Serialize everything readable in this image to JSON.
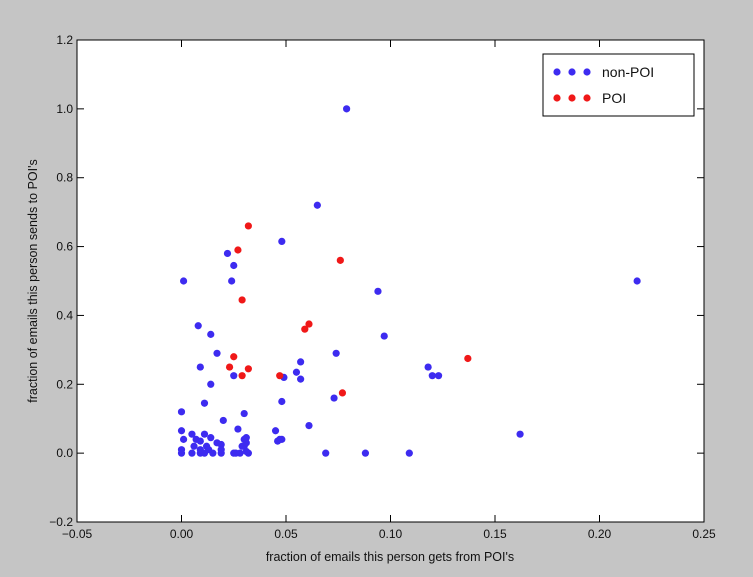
{
  "chart_data": {
    "type": "scatter",
    "title": "",
    "xlabel": "fraction of emails this person gets from POI's",
    "ylabel": "fraction of emails this person sends to POI's",
    "xlim": [
      -0.05,
      0.25
    ],
    "ylim": [
      -0.2,
      1.2
    ],
    "xticks": [
      -0.05,
      0.0,
      0.05,
      0.1,
      0.15,
      0.2,
      0.25
    ],
    "yticks": [
      -0.2,
      0.0,
      0.2,
      0.4,
      0.6,
      0.8,
      1.0,
      1.2
    ],
    "xtick_labels": [
      "−0.05",
      "0.00",
      "0.05",
      "0.10",
      "0.15",
      "0.20",
      "0.25"
    ],
    "ytick_labels": [
      "−0.2",
      "0.0",
      "0.2",
      "0.4",
      "0.6",
      "0.8",
      "1.0",
      "1.2"
    ],
    "grid": false,
    "legend_position": "top-right",
    "series": [
      {
        "name": "non-POI",
        "color": "#3d2bf0",
        "x": [
          0.079,
          0.218,
          0.065,
          0.048,
          0.001,
          0.022,
          0.025,
          0.024,
          0.094,
          0.008,
          0.014,
          0.097,
          0.009,
          0.017,
          0.057,
          0.074,
          0.055,
          0.057,
          0.118,
          0.12,
          0.123,
          0.014,
          0.025,
          0.049,
          0.073,
          0.011,
          0.03,
          0.048,
          0.0,
          0.02,
          0.061,
          0.045,
          0.027,
          0.162,
          0.0,
          0.005,
          0.011,
          0.001,
          0.007,
          0.009,
          0.014,
          0.017,
          0.019,
          0.03,
          0.031,
          0.046,
          0.048,
          0.0,
          0.005,
          0.009,
          0.011,
          0.015,
          0.019,
          0.025,
          0.028,
          0.032,
          0.006,
          0.029,
          0.012,
          0.069,
          0.088,
          0.109,
          0.0,
          0.009,
          0.013,
          0.026,
          0.03,
          0.031,
          0.047,
          0.019,
          0.031
        ],
        "y": [
          1.0,
          0.5,
          0.72,
          0.615,
          0.5,
          0.58,
          0.545,
          0.5,
          0.47,
          0.37,
          0.345,
          0.34,
          0.25,
          0.29,
          0.265,
          0.29,
          0.235,
          0.215,
          0.25,
          0.225,
          0.225,
          0.2,
          0.225,
          0.22,
          0.16,
          0.145,
          0.115,
          0.15,
          0.12,
          0.095,
          0.08,
          0.065,
          0.07,
          0.055,
          0.065,
          0.055,
          0.055,
          0.04,
          0.04,
          0.035,
          0.045,
          0.03,
          0.025,
          0.04,
          0.045,
          0.035,
          0.04,
          0.0,
          0.0,
          0.0,
          0.0,
          0.0,
          0.0,
          0.0,
          0.0,
          0.0,
          0.02,
          0.02,
          0.02,
          0.0,
          0.0,
          0.0,
          0.01,
          0.01,
          0.01,
          0.0,
          0.02,
          0.03,
          0.04,
          0.01,
          0.005
        ]
      },
      {
        "name": "POI",
        "color": "#f01818",
        "x": [
          0.032,
          0.027,
          0.076,
          0.029,
          0.061,
          0.059,
          0.137,
          0.025,
          0.023,
          0.032,
          0.029,
          0.047,
          0.077
        ],
        "y": [
          0.66,
          0.59,
          0.56,
          0.445,
          0.375,
          0.36,
          0.275,
          0.28,
          0.25,
          0.245,
          0.225,
          0.225,
          0.175
        ]
      }
    ]
  }
}
